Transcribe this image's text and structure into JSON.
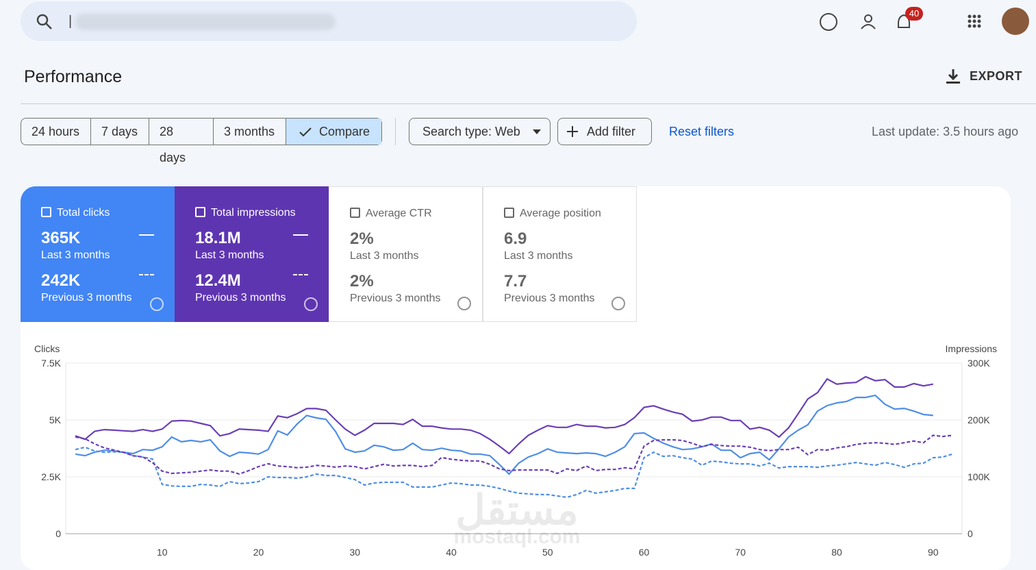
{
  "search": {
    "placeholder": "|"
  },
  "notifications": {
    "count": "40"
  },
  "header": {
    "title": "Performance",
    "export": "EXPORT"
  },
  "filters": {
    "chips": [
      "24 hours",
      "7 days",
      "28 days",
      "3 months",
      "Compare"
    ],
    "search_type": "Search type: Web",
    "add_filter": "Add filter",
    "reset": "Reset filters",
    "last_update": "Last update: 3.5 hours ago"
  },
  "cards": [
    {
      "label": "Total clicks",
      "value": "365K",
      "period": "Last 3 months",
      "prev_value": "242K",
      "prev_period": "Previous 3 months"
    },
    {
      "label": "Total impressions",
      "value": "18.1M",
      "period": "Last 3 months",
      "prev_value": "12.4M",
      "prev_period": "Previous 3 months"
    },
    {
      "label": "Average CTR",
      "value": "2%",
      "period": "Last 3 months",
      "prev_value": "2%",
      "prev_period": "Previous 3 months"
    },
    {
      "label": "Average position",
      "value": "6.9",
      "period": "Last 3 months",
      "prev_value": "7.7",
      "prev_period": "Previous 3 months"
    }
  ],
  "watermark": [
    "مستقل",
    "mostaql.com"
  ],
  "chart_data": {
    "type": "line",
    "y_label": "Clicks",
    "y2_label": "Impressions",
    "x": [
      1,
      2,
      3,
      4,
      5,
      6,
      7,
      8,
      9,
      10,
      11,
      12,
      13,
      14,
      15,
      16,
      17,
      18,
      19,
      20,
      21,
      22,
      23,
      24,
      25,
      26,
      27,
      28,
      29,
      30,
      31,
      32,
      33,
      34,
      35,
      36,
      37,
      38,
      39,
      40,
      41,
      42,
      43,
      44,
      45,
      46,
      47,
      48,
      49,
      50,
      51,
      52,
      53,
      54,
      55,
      56,
      57,
      58,
      59,
      60,
      61,
      62,
      63,
      64,
      65,
      66,
      67,
      68,
      69,
      70,
      71,
      72,
      73,
      74,
      75,
      76,
      77,
      78,
      79,
      80,
      81,
      82,
      83,
      84,
      85,
      86,
      87,
      88,
      89,
      90,
      91,
      92
    ],
    "xlim": [
      0,
      93
    ],
    "xticks": [
      10,
      20,
      30,
      40,
      50,
      60,
      70,
      80,
      90
    ],
    "ylim": [
      0,
      7500
    ],
    "yticks": [
      0,
      {
        "value": 2500,
        "label": "2.5K"
      },
      {
        "value": 5000,
        "label": "5K"
      },
      {
        "value": 7500,
        "label": "7.5K"
      }
    ],
    "y2lim": [
      0,
      300000
    ],
    "y2ticks": [
      0,
      {
        "value": 100000,
        "label": "100K"
      },
      {
        "value": 200000,
        "label": "200K"
      },
      {
        "value": 300000,
        "label": "300K"
      }
    ],
    "grid": true,
    "series": [
      {
        "color": "#4f8ee6",
        "dashed": false,
        "axis": "y",
        "values": [
          3500,
          3430,
          3580,
          3670,
          3640,
          3580,
          3520,
          3700,
          3670,
          3820,
          4250,
          4040,
          4100,
          4040,
          4130,
          3640,
          3400,
          3580,
          3550,
          3500,
          3700,
          4520,
          4340,
          4820,
          5200,
          5090,
          5030,
          4490,
          3730,
          3580,
          3640,
          3890,
          3820,
          3670,
          3700,
          3980,
          3700,
          3670,
          3760,
          3670,
          3640,
          3500,
          3500,
          3430,
          3040,
          2620,
          3100,
          3370,
          3520,
          3730,
          3580,
          3550,
          3520,
          3550,
          3520,
          3400,
          3580,
          3820,
          4400,
          4430,
          4190,
          3980,
          3820,
          3700,
          3730,
          3820,
          3950,
          3670,
          3670,
          3340,
          3520,
          3580,
          3250,
          3730,
          4250,
          4550,
          4790,
          5390,
          5630,
          5750,
          5810,
          5990,
          5990,
          6080,
          5690,
          5480,
          5510,
          5390,
          5240,
          5200,
          null,
          null
        ]
      },
      {
        "color": "#4f8ee6",
        "dashed": true,
        "axis": "y",
        "values": [
          3700,
          3800,
          3640,
          3580,
          3600,
          3580,
          3430,
          3370,
          3280,
          2170,
          2100,
          2080,
          2080,
          2170,
          2140,
          2080,
          2290,
          2200,
          2230,
          2290,
          2500,
          2470,
          2470,
          2440,
          2500,
          2620,
          2560,
          2560,
          2470,
          2380,
          2140,
          2230,
          2260,
          2260,
          2260,
          2050,
          2050,
          2050,
          2140,
          2230,
          2200,
          2140,
          2140,
          2080,
          1990,
          1870,
          1780,
          1750,
          1720,
          1720,
          1660,
          1600,
          1720,
          1900,
          1780,
          1840,
          1900,
          1990,
          1990,
          3340,
          3580,
          3400,
          3430,
          3340,
          3280,
          3010,
          3190,
          3160,
          3100,
          3070,
          3070,
          2980,
          3100,
          2890,
          2950,
          2950,
          2950,
          2920,
          2980,
          3010,
          3070,
          3130,
          3070,
          3010,
          3130,
          3040,
          2920,
          3070,
          3100,
          3340,
          3370,
          3500
        ]
      },
      {
        "color": "#6a3fb5",
        "dashed": false,
        "axis": "y2",
        "values": [
          172000,
          166000,
          180000,
          183000,
          182000,
          181000,
          180000,
          183000,
          180000,
          184000,
          198000,
          199000,
          198000,
          194000,
          190000,
          172000,
          176000,
          184000,
          183000,
          182000,
          180000,
          207000,
          204000,
          211000,
          220000,
          220000,
          217000,
          200000,
          184000,
          173000,
          182000,
          194000,
          194000,
          194000,
          192000,
          201000,
          189000,
          189000,
          186000,
          184000,
          184000,
          182000,
          176000,
          166000,
          154000,
          141000,
          158000,
          173000,
          182000,
          190000,
          187000,
          187000,
          192000,
          189000,
          189000,
          186000,
          187000,
          192000,
          204000,
          222000,
          225000,
          219000,
          214000,
          210000,
          198000,
          200000,
          205000,
          205000,
          199000,
          199000,
          184000,
          187000,
          182000,
          170000,
          186000,
          211000,
          237000,
          248000,
          272000,
          263000,
          265000,
          266000,
          276000,
          269000,
          271000,
          258000,
          258000,
          264000,
          260000,
          263000,
          null,
          null
        ]
      },
      {
        "color": "#6a3fb5",
        "dashed": true,
        "axis": "y2",
        "values": [
          170000,
          167000,
          158000,
          151000,
          147000,
          143000,
          137000,
          135000,
          125000,
          110000,
          106000,
          107000,
          108000,
          110000,
          112000,
          110000,
          110000,
          105000,
          111000,
          118000,
          123000,
          119000,
          118000,
          116000,
          117000,
          120000,
          119000,
          117000,
          119000,
          118000,
          114000,
          118000,
          122000,
          119000,
          120000,
          120000,
          118000,
          120000,
          134000,
          131000,
          129000,
          128000,
          128000,
          122000,
          114000,
          111000,
          112000,
          112000,
          112000,
          112000,
          106000,
          114000,
          111000,
          119000,
          111000,
          113000,
          113000,
          116000,
          114000,
          154000,
          164000,
          165000,
          165000,
          164000,
          159000,
          153000,
          157000,
          155000,
          154000,
          154000,
          152000,
          148000,
          146000,
          148000,
          148000,
          152000,
          139000,
          148000,
          147000,
          151000,
          153000,
          157000,
          159000,
          160000,
          159000,
          157000,
          160000,
          163000,
          160000,
          173000,
          171000,
          173000
        ]
      }
    ]
  }
}
